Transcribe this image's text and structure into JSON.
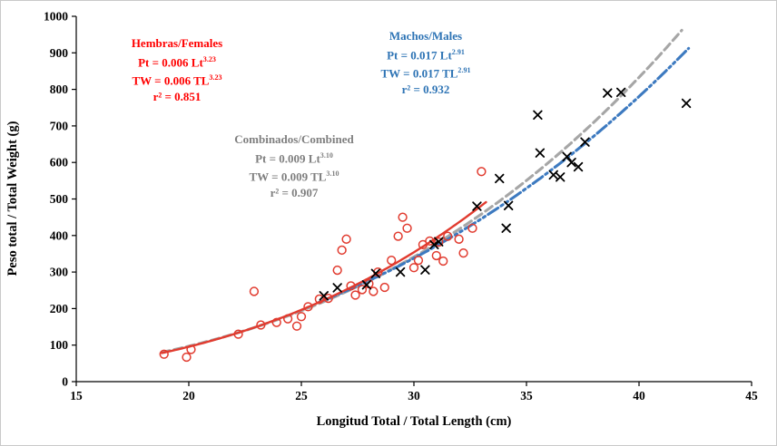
{
  "figure": {
    "background": "#ffffff",
    "border_color": "#c9c9c9"
  },
  "chart_data": {
    "type": "scatter",
    "title": "",
    "xlabel": "Longitud Total / Total Length (cm)",
    "ylabel": "Peso total / Total Weight (g)",
    "xlim": [
      15,
      45
    ],
    "ylim": [
      0,
      1000
    ],
    "xticks": [
      15,
      20,
      25,
      30,
      35,
      40,
      45
    ],
    "yticks": [
      0,
      100,
      200,
      300,
      400,
      500,
      600,
      700,
      800,
      900,
      1000
    ],
    "grid": false,
    "legend": "none",
    "axis_color": "#000000",
    "series": [
      {
        "name": "Hembras/Females",
        "marker": "open-circle",
        "color": "#e13b2f",
        "points": [
          [
            18.9,
            75
          ],
          [
            19.9,
            67
          ],
          [
            20.1,
            88
          ],
          [
            22.2,
            130
          ],
          [
            22.9,
            247
          ],
          [
            23.2,
            155
          ],
          [
            23.9,
            162
          ],
          [
            24.4,
            172
          ],
          [
            24.8,
            152
          ],
          [
            25.0,
            178
          ],
          [
            25.3,
            205
          ],
          [
            25.8,
            226
          ],
          [
            26.2,
            228
          ],
          [
            26.6,
            305
          ],
          [
            26.8,
            360
          ],
          [
            27.0,
            390
          ],
          [
            27.2,
            262
          ],
          [
            27.4,
            237
          ],
          [
            27.7,
            252
          ],
          [
            28.0,
            268
          ],
          [
            28.2,
            247
          ],
          [
            28.4,
            300
          ],
          [
            28.7,
            258
          ],
          [
            29.0,
            332
          ],
          [
            29.3,
            398
          ],
          [
            29.5,
            450
          ],
          [
            29.7,
            420
          ],
          [
            30.0,
            312
          ],
          [
            30.2,
            332
          ],
          [
            30.4,
            375
          ],
          [
            30.7,
            385
          ],
          [
            31.0,
            345
          ],
          [
            31.1,
            382
          ],
          [
            31.3,
            330
          ],
          [
            31.5,
            398
          ],
          [
            32.0,
            390
          ],
          [
            32.2,
            352
          ],
          [
            32.6,
            420
          ],
          [
            33.0,
            575
          ]
        ]
      },
      {
        "name": "Machos/Males",
        "marker": "x",
        "color": "#000000",
        "points": [
          [
            26.0,
            235
          ],
          [
            26.6,
            257
          ],
          [
            27.9,
            265
          ],
          [
            28.3,
            296
          ],
          [
            29.4,
            300
          ],
          [
            30.5,
            306
          ],
          [
            30.9,
            375
          ],
          [
            31.1,
            383
          ],
          [
            32.8,
            480
          ],
          [
            33.8,
            556
          ],
          [
            34.1,
            420
          ],
          [
            34.2,
            482
          ],
          [
            35.5,
            730
          ],
          [
            35.6,
            626
          ],
          [
            36.2,
            566
          ],
          [
            36.5,
            560
          ],
          [
            36.8,
            616
          ],
          [
            37.0,
            600
          ],
          [
            37.3,
            588
          ],
          [
            37.6,
            656
          ],
          [
            38.6,
            790
          ],
          [
            39.2,
            792
          ],
          [
            42.1,
            762
          ]
        ]
      }
    ],
    "fit_curves": [
      {
        "name": "Combinados/Combined",
        "equation": "TW = 0.009 TL^3.10",
        "a": 0.009,
        "b": 3.1,
        "x_range": [
          18.8,
          41.9
        ],
        "color": "#a6a6a6",
        "style": "dashed"
      },
      {
        "name": "Machos/Males",
        "equation": "TW = 0.017 TL^2.91",
        "a": 0.017,
        "b": 2.91,
        "x_range": [
          25.8,
          42.2
        ],
        "color": "#3d7ac0",
        "style": "dashdotdot"
      },
      {
        "name": "Hembras/Females",
        "equation": "TW = 0.006 TL^3.23",
        "a": 0.006,
        "b": 3.23,
        "x_range": [
          18.8,
          33.2
        ],
        "color": "#e13b2f",
        "style": "solid"
      }
    ],
    "annotations": {
      "females": {
        "title": "Hembras/Females",
        "eq1_pre": "Pt = 0.006 Lt",
        "eq1_exp": "3.23",
        "eq2_pre": "TW = 0.006 TL",
        "eq2_exp": "3.23",
        "r2": "r² = 0.851",
        "color": "#FF0000"
      },
      "males": {
        "title": "Machos/Males",
        "eq1_pre": "Pt = 0.017 Lt",
        "eq1_exp": "2.91",
        "eq2_pre": "TW = 0.017 TL",
        "eq2_exp": "2.91",
        "r2": "r² = 0.932",
        "color": "#2e74b5"
      },
      "combined": {
        "title": "Combinados/Combined",
        "eq1_pre": "Pt = 0.009 Lt",
        "eq1_exp": "3.10",
        "eq2_pre": "TW = 0.009 TL",
        "eq2_exp": "3.10",
        "r2": "r² = 0.907",
        "color": "#7f7f7f"
      }
    }
  }
}
